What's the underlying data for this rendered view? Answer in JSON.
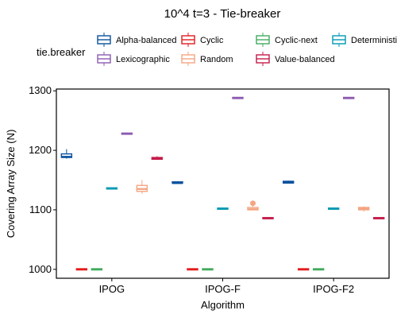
{
  "chart_data": {
    "type": "boxplot",
    "title": "10^4 t=3 - Tie-breaker",
    "xlabel": "Algorithm",
    "ylabel": "Covering Array Size (N)",
    "categories": [
      "IPOG",
      "IPOG-F",
      "IPOG-F2"
    ],
    "yticks": [
      1000,
      1100,
      1200,
      1300
    ],
    "ylim": [
      985,
      1303
    ],
    "grid": false,
    "legend": {
      "title": "tie.breaker",
      "position": "top",
      "entries": [
        "Alpha-balanced",
        "Cyclic",
        "Cyclic-next",
        "Deterministic",
        "Lexicographic",
        "Random",
        "Value-balanced"
      ]
    },
    "series": [
      {
        "name": "Alpha-balanced",
        "color": "#08519c",
        "boxes": [
          {
            "min": 1186,
            "q1": 1188,
            "median": 1189,
            "q3": 1194,
            "max": 1202,
            "outliers": []
          },
          {
            "min": 1144,
            "q1": 1144,
            "median": 1145,
            "q3": 1146,
            "max": 1148,
            "outliers": []
          },
          {
            "min": 1144,
            "q1": 1145,
            "median": 1146,
            "q3": 1148,
            "max": 1149,
            "outliers": []
          }
        ]
      },
      {
        "name": "Cyclic",
        "color": "#e31a1c",
        "boxes": [
          {
            "min": 1000,
            "q1": 1000,
            "median": 1000,
            "q3": 1000,
            "max": 1000,
            "outliers": []
          },
          {
            "min": 1000,
            "q1": 1000,
            "median": 1000,
            "q3": 1000,
            "max": 1000,
            "outliers": []
          },
          {
            "min": 1000,
            "q1": 1000,
            "median": 1000,
            "q3": 1000,
            "max": 1000,
            "outliers": []
          }
        ]
      },
      {
        "name": "Cyclic-next",
        "color": "#41ab5d",
        "boxes": [
          {
            "min": 1000,
            "q1": 1000,
            "median": 1000,
            "q3": 1000,
            "max": 1000,
            "outliers": []
          },
          {
            "min": 1000,
            "q1": 1000,
            "median": 1000,
            "q3": 1000,
            "max": 1000,
            "outliers": []
          },
          {
            "min": 1000,
            "q1": 1000,
            "median": 1000,
            "q3": 1000,
            "max": 1000,
            "outliers": []
          }
        ]
      },
      {
        "name": "Deterministic",
        "color": "#0099b4",
        "boxes": [
          {
            "min": 1136,
            "q1": 1136,
            "median": 1136,
            "q3": 1136,
            "max": 1136,
            "outliers": []
          },
          {
            "min": 1102,
            "q1": 1102,
            "median": 1102,
            "q3": 1102,
            "max": 1102,
            "outliers": []
          },
          {
            "min": 1102,
            "q1": 1102,
            "median": 1102,
            "q3": 1102,
            "max": 1102,
            "outliers": []
          }
        ]
      },
      {
        "name": "Lexicographic",
        "color": "#8c5bb0",
        "boxes": [
          {
            "min": 1228,
            "q1": 1228,
            "median": 1228,
            "q3": 1228,
            "max": 1228,
            "outliers": []
          },
          {
            "min": 1288,
            "q1": 1288,
            "median": 1288,
            "q3": 1288,
            "max": 1288,
            "outliers": []
          },
          {
            "min": 1288,
            "q1": 1288,
            "median": 1288,
            "q3": 1288,
            "max": 1288,
            "outliers": []
          }
        ]
      },
      {
        "name": "Random",
        "color": "#f4a582",
        "boxes": [
          {
            "min": 1127,
            "q1": 1131,
            "median": 1135,
            "q3": 1141,
            "max": 1150,
            "outliers": []
          },
          {
            "min": 1100,
            "q1": 1100,
            "median": 1101,
            "q3": 1104,
            "max": 1106,
            "outliers": [
              1111
            ]
          },
          {
            "min": 1097,
            "q1": 1100,
            "median": 1102,
            "q3": 1104,
            "max": 1106,
            "outliers": []
          }
        ]
      },
      {
        "name": "Value-balanced",
        "color": "#c51b4a",
        "boxes": [
          {
            "min": 1184,
            "q1": 1185,
            "median": 1186,
            "q3": 1188,
            "max": 1190,
            "outliers": []
          },
          {
            "min": 1086,
            "q1": 1086,
            "median": 1086,
            "q3": 1086,
            "max": 1086,
            "outliers": []
          },
          {
            "min": 1086,
            "q1": 1086,
            "median": 1086,
            "q3": 1086,
            "max": 1086,
            "outliers": []
          }
        ]
      }
    ]
  }
}
